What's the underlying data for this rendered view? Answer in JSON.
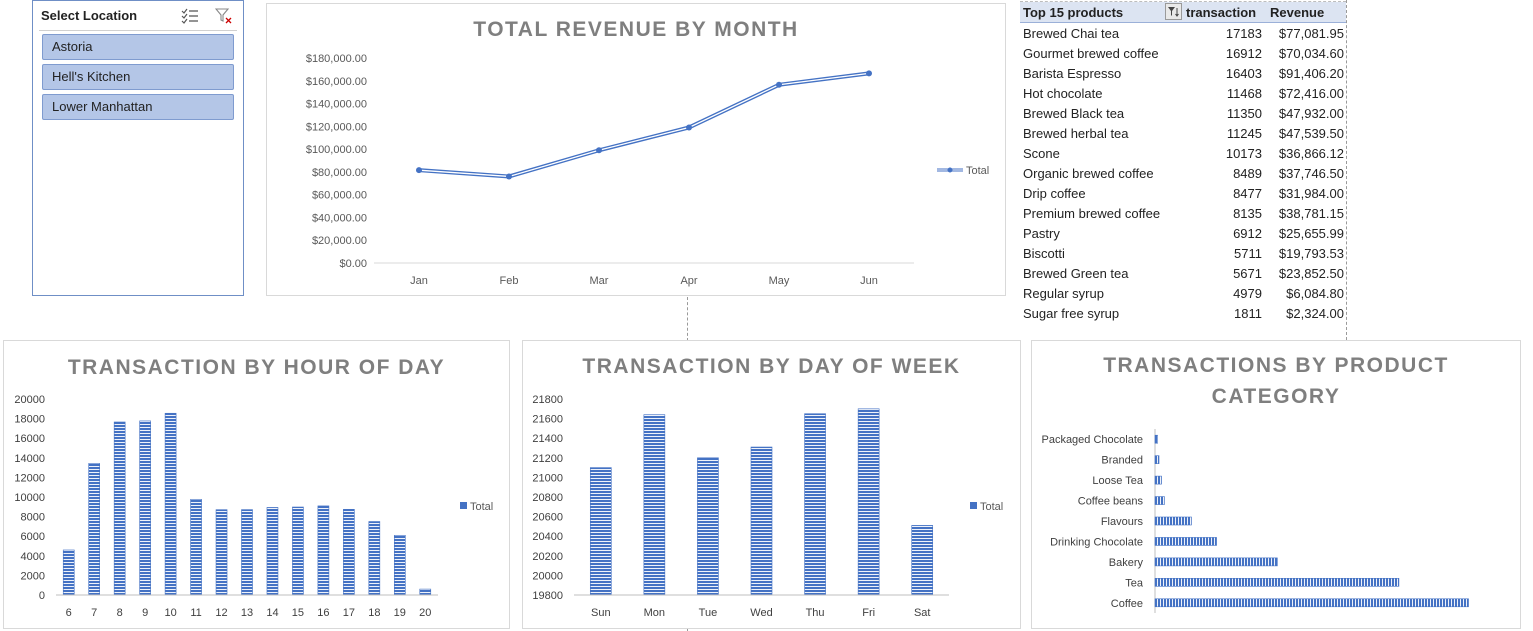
{
  "slicer": {
    "title": "Select Location",
    "items": [
      "Astoria",
      "Hell's Kitchen",
      "Lower Manhattan"
    ],
    "multi_select_icon": "multi-select-icon",
    "clear_filter_icon": "clear-filter-icon"
  },
  "top_products": {
    "headers": {
      "product": "Top 15 products",
      "transaction": "transaction",
      "revenue": "Revenue"
    },
    "filter_icon": "filter-dropdown-icon",
    "rows": [
      {
        "product": "Brewed Chai tea",
        "transaction": "17183",
        "revenue": "$77,081.95"
      },
      {
        "product": "Gourmet brewed coffee",
        "transaction": "16912",
        "revenue": "$70,034.60"
      },
      {
        "product": "Barista Espresso",
        "transaction": "16403",
        "revenue": "$91,406.20"
      },
      {
        "product": "Hot chocolate",
        "transaction": "11468",
        "revenue": "$72,416.00"
      },
      {
        "product": "Brewed Black tea",
        "transaction": "11350",
        "revenue": "$47,932.00"
      },
      {
        "product": "Brewed herbal tea",
        "transaction": "11245",
        "revenue": "$47,539.50"
      },
      {
        "product": "Scone",
        "transaction": "10173",
        "revenue": "$36,866.12"
      },
      {
        "product": "Organic brewed coffee",
        "transaction": "8489",
        "revenue": "$37,746.50"
      },
      {
        "product": "Drip coffee",
        "transaction": "8477",
        "revenue": "$31,984.00"
      },
      {
        "product": "Premium brewed coffee",
        "transaction": "8135",
        "revenue": "$38,781.15"
      },
      {
        "product": "Pastry",
        "transaction": "6912",
        "revenue": "$25,655.99"
      },
      {
        "product": "Biscotti",
        "transaction": "5711",
        "revenue": "$19,793.53"
      },
      {
        "product": "Brewed Green tea",
        "transaction": "5671",
        "revenue": "$23,852.50"
      },
      {
        "product": "Regular syrup",
        "transaction": "4979",
        "revenue": "$6,084.80"
      },
      {
        "product": "Sugar free syrup",
        "transaction": "1811",
        "revenue": "$2,324.00"
      }
    ]
  },
  "colors": {
    "series": "#4472c4",
    "title": "#7f7f7f",
    "slicer_fill": "#b4c6e7",
    "header_fill": "#dce4f2"
  },
  "chart_data": [
    {
      "type": "line",
      "title": "TOTAL REVENUE BY MONTH",
      "categories": [
        "Jan",
        "Feb",
        "Mar",
        "Apr",
        "May",
        "Jun"
      ],
      "series": [
        {
          "name": "Total",
          "values": [
            81500,
            76000,
            99000,
            119000,
            156500,
            166500
          ]
        }
      ],
      "ylim": [
        0,
        180000
      ],
      "yticks": [
        0,
        20000,
        40000,
        60000,
        80000,
        100000,
        120000,
        140000,
        160000,
        180000
      ],
      "ytick_labels": [
        "$0.00",
        "$20,000.00",
        "$40,000.00",
        "$60,000.00",
        "$80,000.00",
        "$100,000.00",
        "$120,000.00",
        "$140,000.00",
        "$160,000.00",
        "$180,000.00"
      ],
      "legend": "right",
      "grid": false
    },
    {
      "type": "bar",
      "title": "TRANSACTION BY HOUR OF DAY",
      "categories": [
        "6",
        "7",
        "8",
        "9",
        "10",
        "11",
        "12",
        "13",
        "14",
        "15",
        "16",
        "17",
        "18",
        "19",
        "20"
      ],
      "series": [
        {
          "name": "Total",
          "values": [
            4594,
            13428,
            17654,
            17764,
            18545,
            9766,
            8708,
            8714,
            8933,
            8979,
            9093,
            8745,
            7498,
            6092,
            603
          ]
        }
      ],
      "ylim": [
        0,
        20000
      ],
      "yticks": [
        0,
        2000,
        4000,
        6000,
        8000,
        10000,
        12000,
        14000,
        16000,
        18000,
        20000
      ],
      "ytick_labels": [
        "0",
        "2000",
        "4000",
        "6000",
        "8000",
        "10000",
        "12000",
        "14000",
        "16000",
        "18000",
        "20000"
      ],
      "legend": "right",
      "grid": false
    },
    {
      "type": "bar",
      "title": "TRANSACTION BY DAY OF WEEK",
      "categories": [
        "Sun",
        "Mon",
        "Tue",
        "Wed",
        "Thu",
        "Fri",
        "Sat"
      ],
      "series": [
        {
          "name": "Total",
          "values": [
            21100,
            21640,
            21200,
            21310,
            21650,
            21700,
            20510
          ]
        }
      ],
      "ylim": [
        19800,
        21800
      ],
      "yticks": [
        19800,
        20000,
        20200,
        20400,
        20600,
        20800,
        21000,
        21200,
        21400,
        21600,
        21800
      ],
      "ytick_labels": [
        "19800",
        "20000",
        "20200",
        "20400",
        "20600",
        "20800",
        "21000",
        "21200",
        "21400",
        "21600",
        "21800"
      ],
      "legend": "right",
      "grid": false
    },
    {
      "type": "bar",
      "orientation": "horizontal",
      "title_lines": [
        "TRANSACTIONS BY PRODUCT",
        "CATEGORY"
      ],
      "categories": [
        "Coffee",
        "Tea",
        "Bakery",
        "Drinking Chocolate",
        "Flavours",
        "Coffee beans",
        "Loose Tea",
        "Branded",
        "Packaged Chocolate"
      ],
      "series": [
        {
          "name": "Total",
          "values": [
            58416,
            45449,
            22796,
            11468,
            6790,
            1753,
            1210,
            747,
            487
          ]
        }
      ],
      "xlim": [
        0,
        60000
      ],
      "legend": "none",
      "grid": false
    }
  ]
}
